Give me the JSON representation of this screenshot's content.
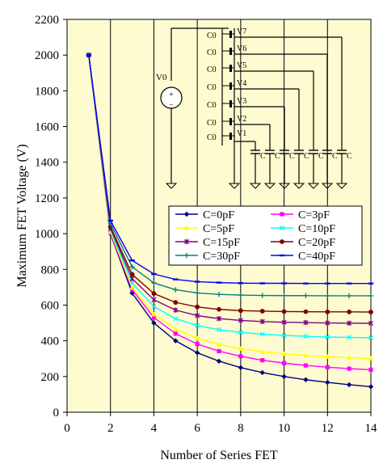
{
  "chart_data": {
    "type": "line",
    "xlabel": "Number of Series FET",
    "ylabel": "Maximum FET Voltage (V)",
    "xlim": [
      0,
      14
    ],
    "ylim": [
      0,
      2200
    ],
    "x_ticks": [
      0,
      2,
      4,
      6,
      8,
      10,
      12,
      14
    ],
    "y_ticks": [
      0,
      200,
      400,
      600,
      800,
      1000,
      1200,
      1400,
      1600,
      1800,
      2000,
      2200
    ],
    "grid": "vertical",
    "legend_position": "center-right",
    "background_color": "#fffbd0",
    "x": [
      1,
      2,
      3,
      4,
      5,
      6,
      7,
      8,
      9,
      10,
      11,
      12,
      13,
      14
    ],
    "series": [
      {
        "name": "C=0pF",
        "color": "#000080",
        "marker": "diamond",
        "values": [
          2000,
          1000,
          667,
          500,
          400,
          333,
          286,
          250,
          222,
          200,
          182,
          167,
          154,
          143
        ]
      },
      {
        "name": "C=3pF",
        "color": "#ff00ff",
        "marker": "square",
        "values": [
          2000,
          1006,
          686,
          530,
          440,
          382,
          342,
          313,
          291,
          275,
          262,
          252,
          244,
          238
        ]
      },
      {
        "name": "C=5pF",
        "color": "#ffff00",
        "marker": "triangle",
        "values": [
          2000,
          1010,
          698,
          549,
          466,
          414,
          380,
          356,
          339,
          327,
          318,
          311,
          306,
          302
        ]
      },
      {
        "name": "C=10pF",
        "color": "#00ffff",
        "marker": "x",
        "values": [
          2000,
          1020,
          724,
          592,
          524,
          486,
          462,
          447,
          437,
          430,
          425,
          421,
          419,
          417
        ]
      },
      {
        "name": "C=15pF",
        "color": "#800080",
        "marker": "asterisk",
        "values": [
          2000,
          1030,
          748,
          630,
          572,
          541,
          524,
          514,
          508,
          504,
          502,
          500,
          499,
          498
        ]
      },
      {
        "name": "C=20pF",
        "color": "#800000",
        "marker": "circle",
        "values": [
          2000,
          1039,
          772,
          665,
          615,
          590,
          576,
          569,
          566,
          564,
          563,
          562,
          562,
          561
        ]
      },
      {
        "name": "C=30pF",
        "color": "#008080",
        "marker": "plus",
        "values": [
          2000,
          1057,
          814,
          724,
          686,
          668,
          660,
          656,
          654,
          653,
          653,
          652,
          652,
          652
        ]
      },
      {
        "name": "C=40pF",
        "color": "#0000ff",
        "marker": "dash",
        "values": [
          2000,
          1073,
          850,
          774,
          744,
          731,
          726,
          723,
          722,
          722,
          721,
          721,
          721,
          721
        ]
      }
    ]
  },
  "inset": {
    "source_label": "V0",
    "cap_labels": [
      "C0",
      "C0",
      "C0",
      "C0",
      "C0",
      "C0",
      "C0"
    ],
    "node_labels": [
      "V7",
      "V6",
      "V5",
      "V4",
      "V3",
      "V2",
      "V1"
    ],
    "parasitic_labels": [
      "C",
      "C",
      "C",
      "C",
      "C",
      "C",
      "C"
    ]
  }
}
